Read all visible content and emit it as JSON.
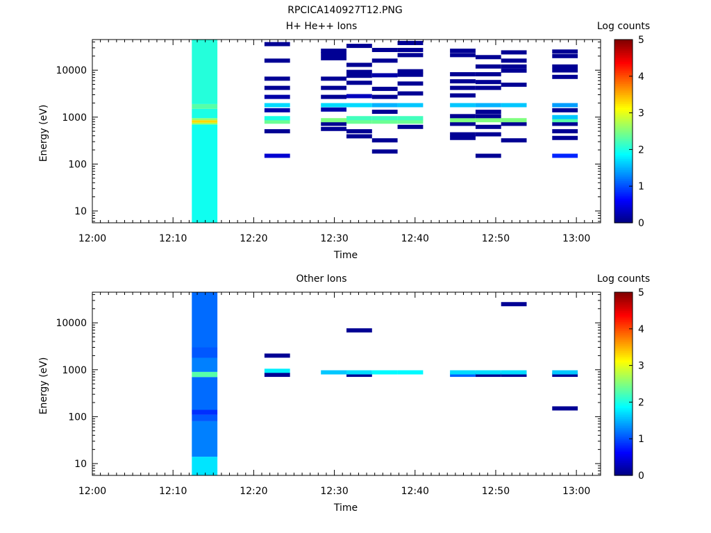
{
  "figure_title": "RPCICA140927T12.PNG",
  "chart_data": [
    {
      "type": "heatmap",
      "title": "H+ He++ Ions",
      "xlabel": "Time",
      "ylabel": "Energy (eV)",
      "x_range": [
        "12:00",
        "13:03"
      ],
      "y_range": [
        5.6,
        45000
      ],
      "y_scale": "log",
      "x_ticks": [
        "12:00",
        "12:10",
        "12:20",
        "12:30",
        "12:40",
        "12:50",
        "13:00"
      ],
      "y_ticks": [
        "10",
        "100",
        "1000",
        "10000"
      ],
      "colorbar": {
        "label": "Log counts",
        "min": 0,
        "max": 5,
        "ticks": [
          "0",
          "1",
          "2",
          "3",
          "4",
          "5"
        ],
        "colormap": "jet"
      },
      "dense_column": {
        "t0": "12:12:20",
        "t1": "12:15:30",
        "bins": [
          {
            "e0": 5.6,
            "e1": 700,
            "v": 1.95
          },
          {
            "e0": 700,
            "e1": 760,
            "v": 2.7
          },
          {
            "e0": 760,
            "e1": 860,
            "v": 3.3
          },
          {
            "e0": 860,
            "e1": 950,
            "v": 2.6
          },
          {
            "e0": 950,
            "e1": 1500,
            "v": 2.0
          },
          {
            "e0": 1500,
            "e1": 1900,
            "v": 2.3
          },
          {
            "e0": 1900,
            "e1": 45000,
            "v": 2.05
          }
        ]
      },
      "blocks": [
        {
          "t0": "12:21:20",
          "t1": "12:24:30",
          "bands": [
            {
              "e": 150,
              "v": 0.4
            },
            {
              "e": 500,
              "v": 0.1
            },
            {
              "e": 800,
              "v": 2.4
            },
            {
              "e": 950,
              "v": 2.0
            },
            {
              "e": 1400,
              "v": 0.2
            },
            {
              "e": 1800,
              "v": 1.7
            },
            {
              "e": 2700,
              "v": 0.2
            },
            {
              "e": 4200,
              "v": 0.1
            },
            {
              "e": 6600,
              "v": 0.1
            },
            {
              "e": 16000,
              "v": 0.1
            },
            {
              "e": 36000,
              "v": 0.1
            }
          ]
        },
        {
          "t0": "12:28:20",
          "t1": "12:31:30",
          "bands": [
            {
              "e": 560,
              "v": 0.1
            },
            {
              "e": 720,
              "v": 0.1
            },
            {
              "e": 860,
              "v": 2.5
            },
            {
              "e": 1450,
              "v": 0.2
            },
            {
              "e": 1800,
              "v": 1.7
            },
            {
              "e": 2700,
              "v": 0.1
            },
            {
              "e": 4200,
              "v": 0.1
            },
            {
              "e": 6600,
              "v": 0.1
            },
            {
              "e": 18000,
              "v": 0.1
            },
            {
              "e": 22000,
              "v": 0.1
            },
            {
              "e": 26000,
              "v": 0.1
            }
          ]
        },
        {
          "t0": "12:31:30",
          "t1": "12:34:40",
          "bands": [
            {
              "e": 390,
              "v": 0.1
            },
            {
              "e": 500,
              "v": 0.1
            },
            {
              "e": 800,
              "v": 2.4
            },
            {
              "e": 950,
              "v": 2.2
            },
            {
              "e": 1800,
              "v": 1.7
            },
            {
              "e": 2800,
              "v": 0.3
            },
            {
              "e": 5400,
              "v": 0.1
            },
            {
              "e": 7600,
              "v": 0.1
            },
            {
              "e": 9200,
              "v": 0.1
            },
            {
              "e": 13000,
              "v": 0.1
            },
            {
              "e": 33000,
              "v": 0.1
            }
          ]
        },
        {
          "t0": "12:34:40",
          "t1": "12:37:50",
          "bands": [
            {
              "e": 185,
              "v": 0.1
            },
            {
              "e": 320,
              "v": 0.1
            },
            {
              "e": 800,
              "v": 2.4
            },
            {
              "e": 950,
              "v": 2.2
            },
            {
              "e": 1300,
              "v": 0.1
            },
            {
              "e": 1800,
              "v": 1.5
            },
            {
              "e": 2700,
              "v": 0.1
            },
            {
              "e": 4000,
              "v": 0.1
            },
            {
              "e": 7800,
              "v": 0.2
            },
            {
              "e": 16000,
              "v": 0.1
            },
            {
              "e": 27000,
              "v": 0.1
            }
          ]
        },
        {
          "t0": "12:37:50",
          "t1": "12:41:00",
          "bands": [
            {
              "e": 620,
              "v": 0.1
            },
            {
              "e": 800,
              "v": 2.4
            },
            {
              "e": 950,
              "v": 2.2
            },
            {
              "e": 1800,
              "v": 1.6
            },
            {
              "e": 3200,
              "v": 0.1
            },
            {
              "e": 5200,
              "v": 0.1
            },
            {
              "e": 8000,
              "v": 0.1
            },
            {
              "e": 9500,
              "v": 0.1
            },
            {
              "e": 21000,
              "v": 0.1
            },
            {
              "e": 27000,
              "v": 0.1
            },
            {
              "e": 38000,
              "v": 0.1
            }
          ]
        },
        {
          "t0": "12:44:20",
          "t1": "12:47:30",
          "bands": [
            {
              "e": 360,
              "v": 0.1
            },
            {
              "e": 430,
              "v": 0.1
            },
            {
              "e": 720,
              "v": 0.1
            },
            {
              "e": 860,
              "v": 2.5
            },
            {
              "e": 1050,
              "v": 0.1
            },
            {
              "e": 1800,
              "v": 1.6
            },
            {
              "e": 2900,
              "v": 0.1
            },
            {
              "e": 4200,
              "v": 0.1
            },
            {
              "e": 5800,
              "v": 0.1
            },
            {
              "e": 8200,
              "v": 0.1
            },
            {
              "e": 21000,
              "v": 0.1
            },
            {
              "e": 26000,
              "v": 0.1
            }
          ]
        },
        {
          "t0": "12:47:30",
          "t1": "12:50:40",
          "bands": [
            {
              "e": 150,
              "v": 0.1
            },
            {
              "e": 430,
              "v": 0.1
            },
            {
              "e": 620,
              "v": 0.1
            },
            {
              "e": 860,
              "v": 2.5
            },
            {
              "e": 1050,
              "v": 0.1
            },
            {
              "e": 1300,
              "v": 0.1
            },
            {
              "e": 1800,
              "v": 1.5
            },
            {
              "e": 4200,
              "v": 0.1
            },
            {
              "e": 5600,
              "v": 0.1
            },
            {
              "e": 8200,
              "v": 0.1
            },
            {
              "e": 12000,
              "v": 0.1
            },
            {
              "e": 19000,
              "v": 0.1
            }
          ]
        },
        {
          "t0": "12:50:40",
          "t1": "12:53:50",
          "bands": [
            {
              "e": 320,
              "v": 0.1
            },
            {
              "e": 720,
              "v": 0.1
            },
            {
              "e": 860,
              "v": 2.5
            },
            {
              "e": 1800,
              "v": 1.6
            },
            {
              "e": 4900,
              "v": 0.1
            },
            {
              "e": 9800,
              "v": 0.1
            },
            {
              "e": 12000,
              "v": 0.1
            },
            {
              "e": 16000,
              "v": 0.1
            },
            {
              "e": 24000,
              "v": 0.1
            }
          ]
        },
        {
          "t0": "12:57:00",
          "t1": "13:00:10",
          "bands": [
            {
              "e": 150,
              "v": 0.8
            },
            {
              "e": 360,
              "v": 0.1
            },
            {
              "e": 500,
              "v": 0.1
            },
            {
              "e": 720,
              "v": 0.1
            },
            {
              "e": 860,
              "v": 2.3
            },
            {
              "e": 1000,
              "v": 1.6
            },
            {
              "e": 1400,
              "v": 0.1
            },
            {
              "e": 1800,
              "v": 1.4
            },
            {
              "e": 7200,
              "v": 0.1
            },
            {
              "e": 9900,
              "v": 0.1
            },
            {
              "e": 12000,
              "v": 0.1
            },
            {
              "e": 20000,
              "v": 0.1
            },
            {
              "e": 25000,
              "v": 0.1
            }
          ]
        }
      ]
    },
    {
      "type": "heatmap",
      "title": "Other Ions",
      "xlabel": "Time",
      "ylabel": "Energy (eV)",
      "x_range": [
        "12:00",
        "13:03"
      ],
      "y_range": [
        5.6,
        45000
      ],
      "y_scale": "log",
      "x_ticks": [
        "12:00",
        "12:10",
        "12:20",
        "12:30",
        "12:40",
        "12:50",
        "13:00"
      ],
      "y_ticks": [
        "10",
        "100",
        "1000",
        "10000"
      ],
      "colorbar": {
        "label": "Log counts",
        "min": 0,
        "max": 5,
        "ticks": [
          "0",
          "1",
          "2",
          "3",
          "4",
          "5"
        ],
        "colormap": "jet"
      },
      "dense_column": {
        "t0": "12:12:20",
        "t1": "12:15:30",
        "bins": [
          {
            "e0": 5.6,
            "e1": 14,
            "v": 1.75
          },
          {
            "e0": 14,
            "e1": 80,
            "v": 1.25
          },
          {
            "e0": 80,
            "e1": 110,
            "v": 1.05
          },
          {
            "e0": 110,
            "e1": 140,
            "v": 0.85
          },
          {
            "e0": 140,
            "e1": 700,
            "v": 1.15
          },
          {
            "e0": 700,
            "e1": 900,
            "v": 2.3
          },
          {
            "e0": 900,
            "e1": 1800,
            "v": 1.25
          },
          {
            "e0": 1800,
            "e1": 3000,
            "v": 1.05
          },
          {
            "e0": 3000,
            "e1": 45000,
            "v": 1.15
          }
        ]
      },
      "blocks": [
        {
          "t0": "12:21:20",
          "t1": "12:24:30",
          "bands": [
            {
              "e": 780,
              "v": 0.1
            },
            {
              "e": 950,
              "v": 1.8
            },
            {
              "e": 2000,
              "v": 0.1
            }
          ]
        },
        {
          "t0": "12:28:20",
          "t1": "12:31:30",
          "bands": [
            {
              "e": 880,
              "v": 1.6
            }
          ]
        },
        {
          "t0": "12:31:30",
          "t1": "12:34:40",
          "bands": [
            {
              "e": 780,
              "v": 0.1
            },
            {
              "e": 880,
              "v": 1.7
            },
            {
              "e": 6900,
              "v": 0.1
            }
          ]
        },
        {
          "t0": "12:34:40",
          "t1": "12:37:50",
          "bands": [
            {
              "e": 880,
              "v": 1.85
            }
          ]
        },
        {
          "t0": "12:37:50",
          "t1": "12:41:00",
          "bands": [
            {
              "e": 880,
              "v": 1.85
            }
          ]
        },
        {
          "t0": "12:44:20",
          "t1": "12:47:30",
          "bands": [
            {
              "e": 780,
              "v": 1.1
            },
            {
              "e": 880,
              "v": 1.7
            }
          ]
        },
        {
          "t0": "12:47:30",
          "t1": "12:50:40",
          "bands": [
            {
              "e": 780,
              "v": 0.1
            },
            {
              "e": 880,
              "v": 1.7
            }
          ]
        },
        {
          "t0": "12:50:40",
          "t1": "12:53:50",
          "bands": [
            {
              "e": 780,
              "v": 0.1
            },
            {
              "e": 880,
              "v": 1.7
            },
            {
              "e": 25000,
              "v": 0.1
            }
          ]
        },
        {
          "t0": "12:57:00",
          "t1": "13:00:10",
          "bands": [
            {
              "e": 150,
              "v": 0.1
            },
            {
              "e": 780,
              "v": 0.1
            },
            {
              "e": 880,
              "v": 1.6
            }
          ]
        }
      ]
    }
  ]
}
